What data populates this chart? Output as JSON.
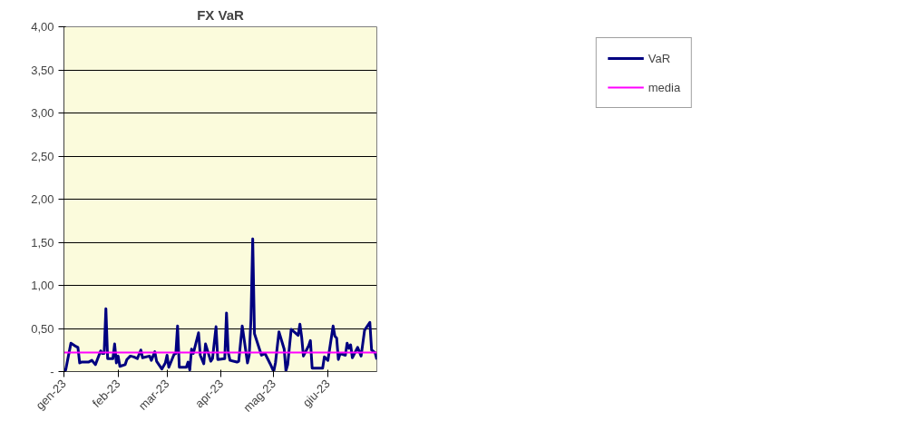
{
  "chart_data": {
    "type": "line",
    "title": "FX VaR",
    "x": [
      "2023-01-01",
      "2023-01-02",
      "2023-01-05",
      "2023-01-08",
      "2023-01-09",
      "2023-01-10",
      "2023-01-11",
      "2023-01-15",
      "2023-01-17",
      "2023-01-19",
      "2023-01-22",
      "2023-01-23",
      "2023-01-24",
      "2023-01-25",
      "2023-01-26",
      "2023-01-29",
      "2023-01-30",
      "2023-01-31",
      "2023-02-01",
      "2023-02-02",
      "2023-02-05",
      "2023-02-06",
      "2023-02-08",
      "2023-02-10",
      "2023-02-12",
      "2023-02-14",
      "2023-02-15",
      "2023-02-19",
      "2023-02-20",
      "2023-02-22",
      "2023-02-23",
      "2023-02-26",
      "2023-02-28",
      "2023-03-01",
      "2023-03-02",
      "2023-03-05",
      "2023-03-06",
      "2023-03-07",
      "2023-03-08",
      "2023-03-12",
      "2023-03-13",
      "2023-03-14",
      "2023-03-15",
      "2023-03-16",
      "2023-03-19",
      "2023-03-20",
      "2023-03-22",
      "2023-03-23",
      "2023-03-26",
      "2023-03-27",
      "2023-03-29",
      "2023-03-30",
      "2023-04-03",
      "2023-04-04",
      "2023-04-05",
      "2023-04-06",
      "2023-04-10",
      "2023-04-11",
      "2023-04-13",
      "2023-04-16",
      "2023-04-17",
      "2023-04-18",
      "2023-04-19",
      "2023-04-20",
      "2023-04-24",
      "2023-04-26",
      "2023-04-29",
      "2023-05-01",
      "2023-05-02",
      "2023-05-04",
      "2023-05-07",
      "2023-05-08",
      "2023-05-09",
      "2023-05-11",
      "2023-05-15",
      "2023-05-16",
      "2023-05-17",
      "2023-05-18",
      "2023-05-21",
      "2023-05-22",
      "2023-05-23",
      "2023-05-29",
      "2023-05-30",
      "2023-06-01",
      "2023-06-04",
      "2023-06-05",
      "2023-06-06",
      "2023-06-07",
      "2023-06-08",
      "2023-06-11",
      "2023-06-12",
      "2023-06-13",
      "2023-06-14",
      "2023-06-15",
      "2023-06-18",
      "2023-06-20",
      "2023-06-22",
      "2023-06-25",
      "2023-06-26",
      "2023-06-28",
      "2023-06-29"
    ],
    "series": [
      {
        "name": "VaR",
        "color": "#000080",
        "values": [
          0.02,
          0.02,
          0.33,
          0.29,
          0.28,
          0.1,
          0.11,
          0.11,
          0.13,
          0.08,
          0.24,
          0.21,
          0.21,
          0.73,
          0.15,
          0.15,
          0.32,
          0.1,
          0.18,
          0.06,
          0.08,
          0.14,
          0.18,
          0.17,
          0.15,
          0.25,
          0.16,
          0.18,
          0.13,
          0.23,
          0.12,
          0.03,
          0.1,
          0.19,
          0.05,
          0.2,
          0.21,
          0.53,
          0.05,
          0.05,
          0.11,
          0.02,
          0.26,
          0.21,
          0.45,
          0.19,
          0.09,
          0.32,
          0.12,
          0.15,
          0.52,
          0.14,
          0.15,
          0.68,
          0.22,
          0.13,
          0.11,
          0.12,
          0.53,
          0.1,
          0.19,
          0.61,
          1.54,
          0.44,
          0.19,
          0.21,
          0.09,
          0.0,
          0.1,
          0.46,
          0.26,
          0.01,
          0.08,
          0.49,
          0.42,
          0.55,
          0.4,
          0.18,
          0.3,
          0.36,
          0.04,
          0.04,
          0.17,
          0.13,
          0.53,
          0.41,
          0.39,
          0.14,
          0.21,
          0.19,
          0.33,
          0.27,
          0.31,
          0.16,
          0.28,
          0.18,
          0.48,
          0.57,
          0.25,
          0.22,
          0.14
        ]
      }
    ],
    "ref_lines": [
      {
        "axis": "y",
        "value": 0.22,
        "label": "media",
        "color": "#ff00ff"
      }
    ],
    "xlim": [
      "2023-01-01",
      "2023-06-29"
    ],
    "xticks": [
      {
        "value": "2023-01-01",
        "label": "gen-23"
      },
      {
        "value": "2023-02-01",
        "label": "feb-23"
      },
      {
        "value": "2023-03-01",
        "label": "mar-23"
      },
      {
        "value": "2023-04-01",
        "label": "apr-23"
      },
      {
        "value": "2023-05-01",
        "label": "mag-23"
      },
      {
        "value": "2023-06-01",
        "label": "giu-23"
      }
    ],
    "ylim": [
      0,
      4
    ],
    "yticks": [
      {
        "value": 0,
        "label": "-"
      },
      {
        "value": 0.5,
        "label": "0,50"
      },
      {
        "value": 1,
        "label": "1,00"
      },
      {
        "value": 1.5,
        "label": "1,50"
      },
      {
        "value": 2,
        "label": "2,00"
      },
      {
        "value": 2.5,
        "label": "2,50"
      },
      {
        "value": 3,
        "label": "3,00"
      },
      {
        "value": 3.5,
        "label": "3,50"
      },
      {
        "value": 4,
        "label": "4,00"
      }
    ],
    "grid": "y",
    "legend": "right"
  }
}
